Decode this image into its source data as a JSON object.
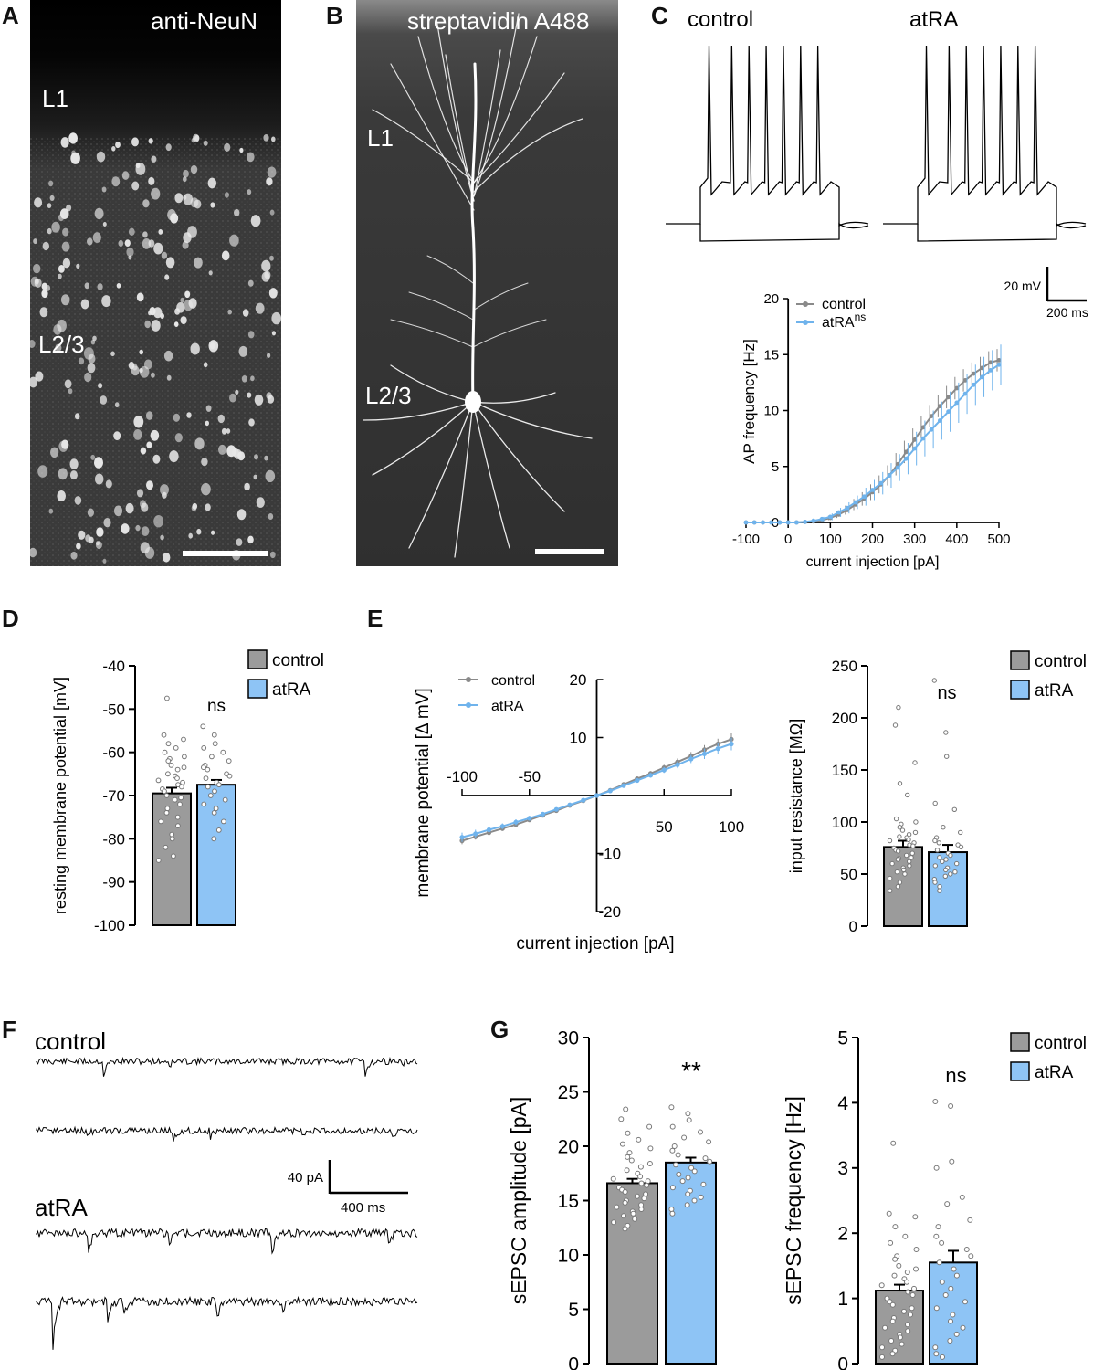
{
  "panels": {
    "A": {
      "letter": "A",
      "stain": "anti-NeuN",
      "layer1": "L1",
      "layer23": "L2/3"
    },
    "B": {
      "letter": "B",
      "stain": "streptavidin A488",
      "layer1": "L1",
      "layer23": "L2/3"
    },
    "C": {
      "letter": "C"
    },
    "D": {
      "letter": "D"
    },
    "E": {
      "letter": "E"
    },
    "F": {
      "letter": "F"
    },
    "G": {
      "letter": "G"
    }
  },
  "traces_C": {
    "control_label": "control",
    "atra_label": "atRA",
    "scale_v": "20 mV",
    "scale_t": "200 ms"
  },
  "traces_F": {
    "control_label": "control",
    "atra_label": "atRA",
    "scale_i": "40 pA",
    "scale_t": "400 ms"
  },
  "colors": {
    "control": "#9b9b9b",
    "atra": "#8ec4f5",
    "control_line": "#8a8a8a",
    "atra_line": "#6fb3ec"
  },
  "chart_data": [
    {
      "id": "C",
      "type": "line",
      "xlabel": "current injection [pA]",
      "ylabel": "AP frequency [Hz]",
      "xlim": [
        -100,
        500
      ],
      "ylim": [
        0,
        20
      ],
      "xticks": [
        -100,
        0,
        100,
        200,
        300,
        400,
        500
      ],
      "yticks": [
        0,
        5,
        10,
        15,
        20
      ],
      "legend": [
        "control",
        "atRA"
      ],
      "legend_sup": "ns",
      "x": [
        -100,
        -80,
        -60,
        -40,
        -20,
        0,
        20,
        40,
        60,
        80,
        100,
        120,
        140,
        160,
        180,
        200,
        220,
        240,
        260,
        280,
        300,
        320,
        340,
        360,
        380,
        400,
        420,
        440,
        460,
        480,
        500
      ],
      "series": [
        {
          "name": "control",
          "values": [
            0,
            0,
            0,
            0,
            0,
            0,
            0,
            0.05,
            0.1,
            0.2,
            0.4,
            0.7,
            1.1,
            1.6,
            2.1,
            2.7,
            3.4,
            4.2,
            5.2,
            6.3,
            7.4,
            8.5,
            9.5,
            10.4,
            11.2,
            12,
            12.7,
            13.3,
            13.8,
            14.3,
            14.5
          ],
          "err": [
            0,
            0,
            0,
            0,
            0,
            0,
            0,
            0.05,
            0.1,
            0.15,
            0.2,
            0.3,
            0.4,
            0.5,
            0.6,
            0.7,
            0.8,
            0.9,
            1,
            1,
            1,
            1,
            1,
            1,
            1,
            1,
            1,
            1,
            1,
            1,
            1
          ]
        },
        {
          "name": "atRA",
          "values": [
            0,
            0,
            0,
            0,
            0,
            0,
            0,
            0.05,
            0.15,
            0.3,
            0.5,
            0.9,
            1.3,
            1.8,
            2.3,
            2.9,
            3.5,
            4.2,
            4.9,
            5.7,
            6.6,
            7.5,
            8.3,
            9.1,
            9.9,
            10.7,
            11.5,
            12.3,
            13,
            13.6,
            14.1
          ],
          "err": [
            0,
            0,
            0,
            0,
            0,
            0,
            0,
            0.05,
            0.1,
            0.2,
            0.3,
            0.4,
            0.5,
            0.6,
            0.8,
            0.9,
            1,
            1.1,
            1.2,
            1.4,
            1.5,
            1.6,
            1.7,
            1.7,
            1.8,
            1.8,
            1.8,
            1.8,
            1.8,
            1.8,
            1.8
          ]
        }
      ]
    },
    {
      "id": "D",
      "type": "bar",
      "ylabel": "resting membrane potential [mV]",
      "ylim": [
        -100,
        -40
      ],
      "yticks": [
        -40,
        -50,
        -60,
        -70,
        -80,
        -90,
        -100
      ],
      "categories": [
        "control",
        "atRA"
      ],
      "values": [
        -69.5,
        -67.5
      ],
      "sem": [
        1.3,
        1.1
      ],
      "annotation": "ns",
      "points": [
        [
          -47.5,
          -56,
          -57,
          -58,
          -59,
          -60,
          -61,
          -61.5,
          -62,
          -63,
          -63.5,
          -64,
          -65,
          -65.5,
          -66,
          -66.5,
          -67,
          -67.5,
          -68,
          -68.5,
          -69,
          -70,
          -70.5,
          -71,
          -72,
          -73,
          -74,
          -75,
          -76,
          -77,
          -79,
          -80,
          -82,
          -84,
          -85
        ],
        [
          -54,
          -56,
          -58,
          -59,
          -60,
          -61,
          -62,
          -63,
          -63.5,
          -64,
          -65,
          -65.5,
          -66,
          -67,
          -67.5,
          -68,
          -69,
          -70,
          -71,
          -72,
          -73,
          -74,
          -76,
          -78,
          -80
        ]
      ]
    },
    {
      "id": "E-IV",
      "type": "line",
      "xlabel": "current injection [pA]",
      "ylabel": "membrane potential [Δ mV]",
      "xlim": [
        -100,
        100
      ],
      "ylim": [
        -20,
        20
      ],
      "xticks_top": [
        -100,
        -50
      ],
      "xticks_bottom": [
        50,
        100
      ],
      "yticks_right": [
        20,
        10
      ],
      "yticks_neg": [
        -10,
        -20
      ],
      "legend": [
        "control",
        "atRA"
      ],
      "x": [
        -100,
        -90,
        -80,
        -70,
        -60,
        -50,
        -40,
        -30,
        -20,
        -10,
        0,
        10,
        20,
        30,
        40,
        50,
        60,
        70,
        80,
        90,
        100
      ],
      "series": [
        {
          "name": "control",
          "values": [
            -7.8,
            -7.1,
            -6.4,
            -5.7,
            -5,
            -4.2,
            -3.4,
            -2.6,
            -1.7,
            -0.9,
            0,
            0.9,
            1.9,
            2.9,
            3.8,
            4.8,
            5.8,
            6.8,
            7.9,
            8.9,
            9.7
          ],
          "err": [
            0.6,
            0.5,
            0.5,
            0.4,
            0.4,
            0.3,
            0.3,
            0.2,
            0.2,
            0.1,
            0,
            0.1,
            0.2,
            0.3,
            0.4,
            0.5,
            0.6,
            0.7,
            0.8,
            0.9,
            1.0
          ]
        },
        {
          "name": "atRA",
          "values": [
            -7.2,
            -6.6,
            -5.9,
            -5.3,
            -4.6,
            -3.9,
            -3.2,
            -2.4,
            -1.6,
            -0.8,
            0,
            0.8,
            1.7,
            2.6,
            3.5,
            4.4,
            5.3,
            6.3,
            7.2,
            8.1,
            8.9
          ],
          "err": [
            0.8,
            0.7,
            0.6,
            0.5,
            0.5,
            0.4,
            0.3,
            0.3,
            0.2,
            0.1,
            0,
            0.1,
            0.2,
            0.3,
            0.4,
            0.5,
            0.6,
            0.7,
            0.9,
            1.0,
            1.1
          ]
        }
      ]
    },
    {
      "id": "E-Rin",
      "type": "bar",
      "ylabel": "input resistance [MΩ]",
      "ylim": [
        0,
        250
      ],
      "yticks": [
        0,
        50,
        100,
        150,
        200,
        250
      ],
      "categories": [
        "control",
        "atRA"
      ],
      "values": [
        76,
        71
      ],
      "sem": [
        6,
        7
      ],
      "annotation": "ns",
      "legend": [
        "control",
        "atRA"
      ],
      "points": [
        [
          210,
          193,
          157,
          137,
          126,
          103,
          100,
          98,
          95,
          92,
          90,
          88,
          86,
          85,
          83,
          82,
          80,
          78,
          77,
          75,
          73,
          72,
          70,
          68,
          66,
          65,
          64,
          62,
          60,
          58,
          56,
          54,
          52,
          50,
          46,
          42,
          38,
          34
        ],
        [
          236,
          186,
          163,
          118,
          112,
          95,
          90,
          85,
          82,
          80,
          78,
          76,
          73,
          70,
          68,
          66,
          64,
          62,
          60,
          58,
          56,
          54,
          52,
          50,
          48,
          45,
          42,
          38,
          34
        ]
      ]
    },
    {
      "id": "G-amp",
      "type": "bar",
      "ylabel": "sEPSC amplitude [pA]",
      "ylim": [
        0,
        30
      ],
      "yticks": [
        0,
        5,
        10,
        15,
        20,
        25,
        30
      ],
      "categories": [
        "control",
        "atRA"
      ],
      "values": [
        16.6,
        18.5
      ],
      "sem": [
        0.4,
        0.45
      ],
      "annotation": "**",
      "points": [
        [
          23.4,
          22.5,
          21.8,
          21.2,
          20.6,
          20.2,
          19.8,
          19.4,
          19,
          18.7,
          18.4,
          18.1,
          17.8,
          17.5,
          17.2,
          17,
          16.8,
          16.6,
          16.4,
          16.2,
          16,
          15.8,
          15.6,
          15.4,
          15.2,
          15,
          14.8,
          14.6,
          14.4,
          14.2,
          14,
          13.8,
          13.6,
          13.3,
          13,
          12.7,
          12.4
        ],
        [
          23.6,
          23,
          22.4,
          21.8,
          21.3,
          20.8,
          20.4,
          20,
          19.6,
          19.2,
          18.9,
          18.6,
          18.3,
          18,
          17.7,
          17.4,
          17.1,
          16.8,
          16.5,
          16.2,
          15.9,
          15.6,
          15.3,
          15,
          14.6,
          14.2,
          13.8
        ]
      ]
    },
    {
      "id": "G-freq",
      "type": "bar",
      "ylabel": "sEPSC frequency [Hz]",
      "ylim": [
        0,
        5
      ],
      "yticks": [
        0,
        1,
        2,
        3,
        4,
        5
      ],
      "categories": [
        "control",
        "atRA"
      ],
      "values": [
        1.12,
        1.55
      ],
      "sem": [
        0.09,
        0.18
      ],
      "annotation": "ns",
      "legend": [
        "control",
        "atRA"
      ],
      "points": [
        [
          3.38,
          2.3,
          2.25,
          2.1,
          1.95,
          1.85,
          1.75,
          1.65,
          1.6,
          1.5,
          1.45,
          1.4,
          1.35,
          1.3,
          1.25,
          1.2,
          1.15,
          1.1,
          1.05,
          1,
          0.95,
          0.9,
          0.85,
          0.8,
          0.75,
          0.7,
          0.65,
          0.6,
          0.55,
          0.5,
          0.45,
          0.4,
          0.35,
          0.3,
          0.25,
          0.2,
          0.15,
          0.1
        ],
        [
          4.02,
          3.95,
          3.1,
          3,
          2.55,
          2.45,
          2.2,
          2.1,
          1.95,
          1.85,
          1.75,
          1.65,
          1.55,
          1.45,
          1.35,
          1.25,
          1.15,
          1.05,
          0.95,
          0.85,
          0.75,
          0.65,
          0.55,
          0.45,
          0.35,
          0.25,
          0.15,
          0.1
        ]
      ]
    }
  ]
}
